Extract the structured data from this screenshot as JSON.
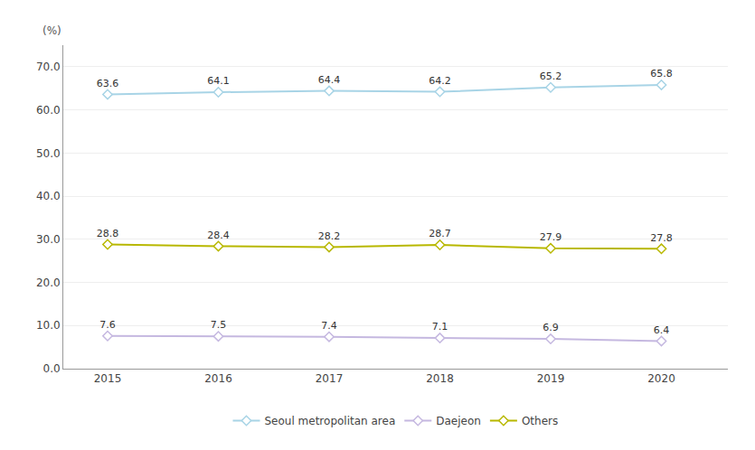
{
  "chart_data": {
    "type": "line",
    "y_label": "(%)",
    "x": [
      2015,
      2016,
      2017,
      2018,
      2019,
      2020
    ],
    "series": [
      {
        "name": "Seoul metropolitan area",
        "color": "#a8d4e6",
        "values": [
          63.6,
          64.1,
          64.4,
          64.2,
          65.2,
          65.8
        ]
      },
      {
        "name": "Daejeon",
        "color": "#c5b8e0",
        "values": [
          7.6,
          7.5,
          7.4,
          7.1,
          6.9,
          6.4
        ]
      },
      {
        "name": "Others",
        "color": "#b8b800",
        "values": [
          28.8,
          28.4,
          28.2,
          28.7,
          27.9,
          27.8
        ]
      }
    ],
    "xlim": [
      2014.6,
      2020.6
    ],
    "xticks": [
      2015,
      2016,
      2017,
      2018,
      2019,
      2020
    ],
    "ylim": [
      0,
      75
    ],
    "yticks": [
      {
        "value": 0,
        "label": "0.0"
      },
      {
        "value": 10,
        "label": "10.0"
      },
      {
        "value": 20,
        "label": "20.0"
      },
      {
        "value": 30,
        "label": "30.0"
      },
      {
        "value": 40,
        "label": "40.0"
      },
      {
        "value": 50,
        "label": "50.0"
      },
      {
        "value": 60,
        "label": "60.0"
      },
      {
        "value": 70,
        "label": "70.0"
      }
    ],
    "grid": true,
    "legend": "bottom",
    "data_labels": true,
    "marker": "diamond"
  }
}
